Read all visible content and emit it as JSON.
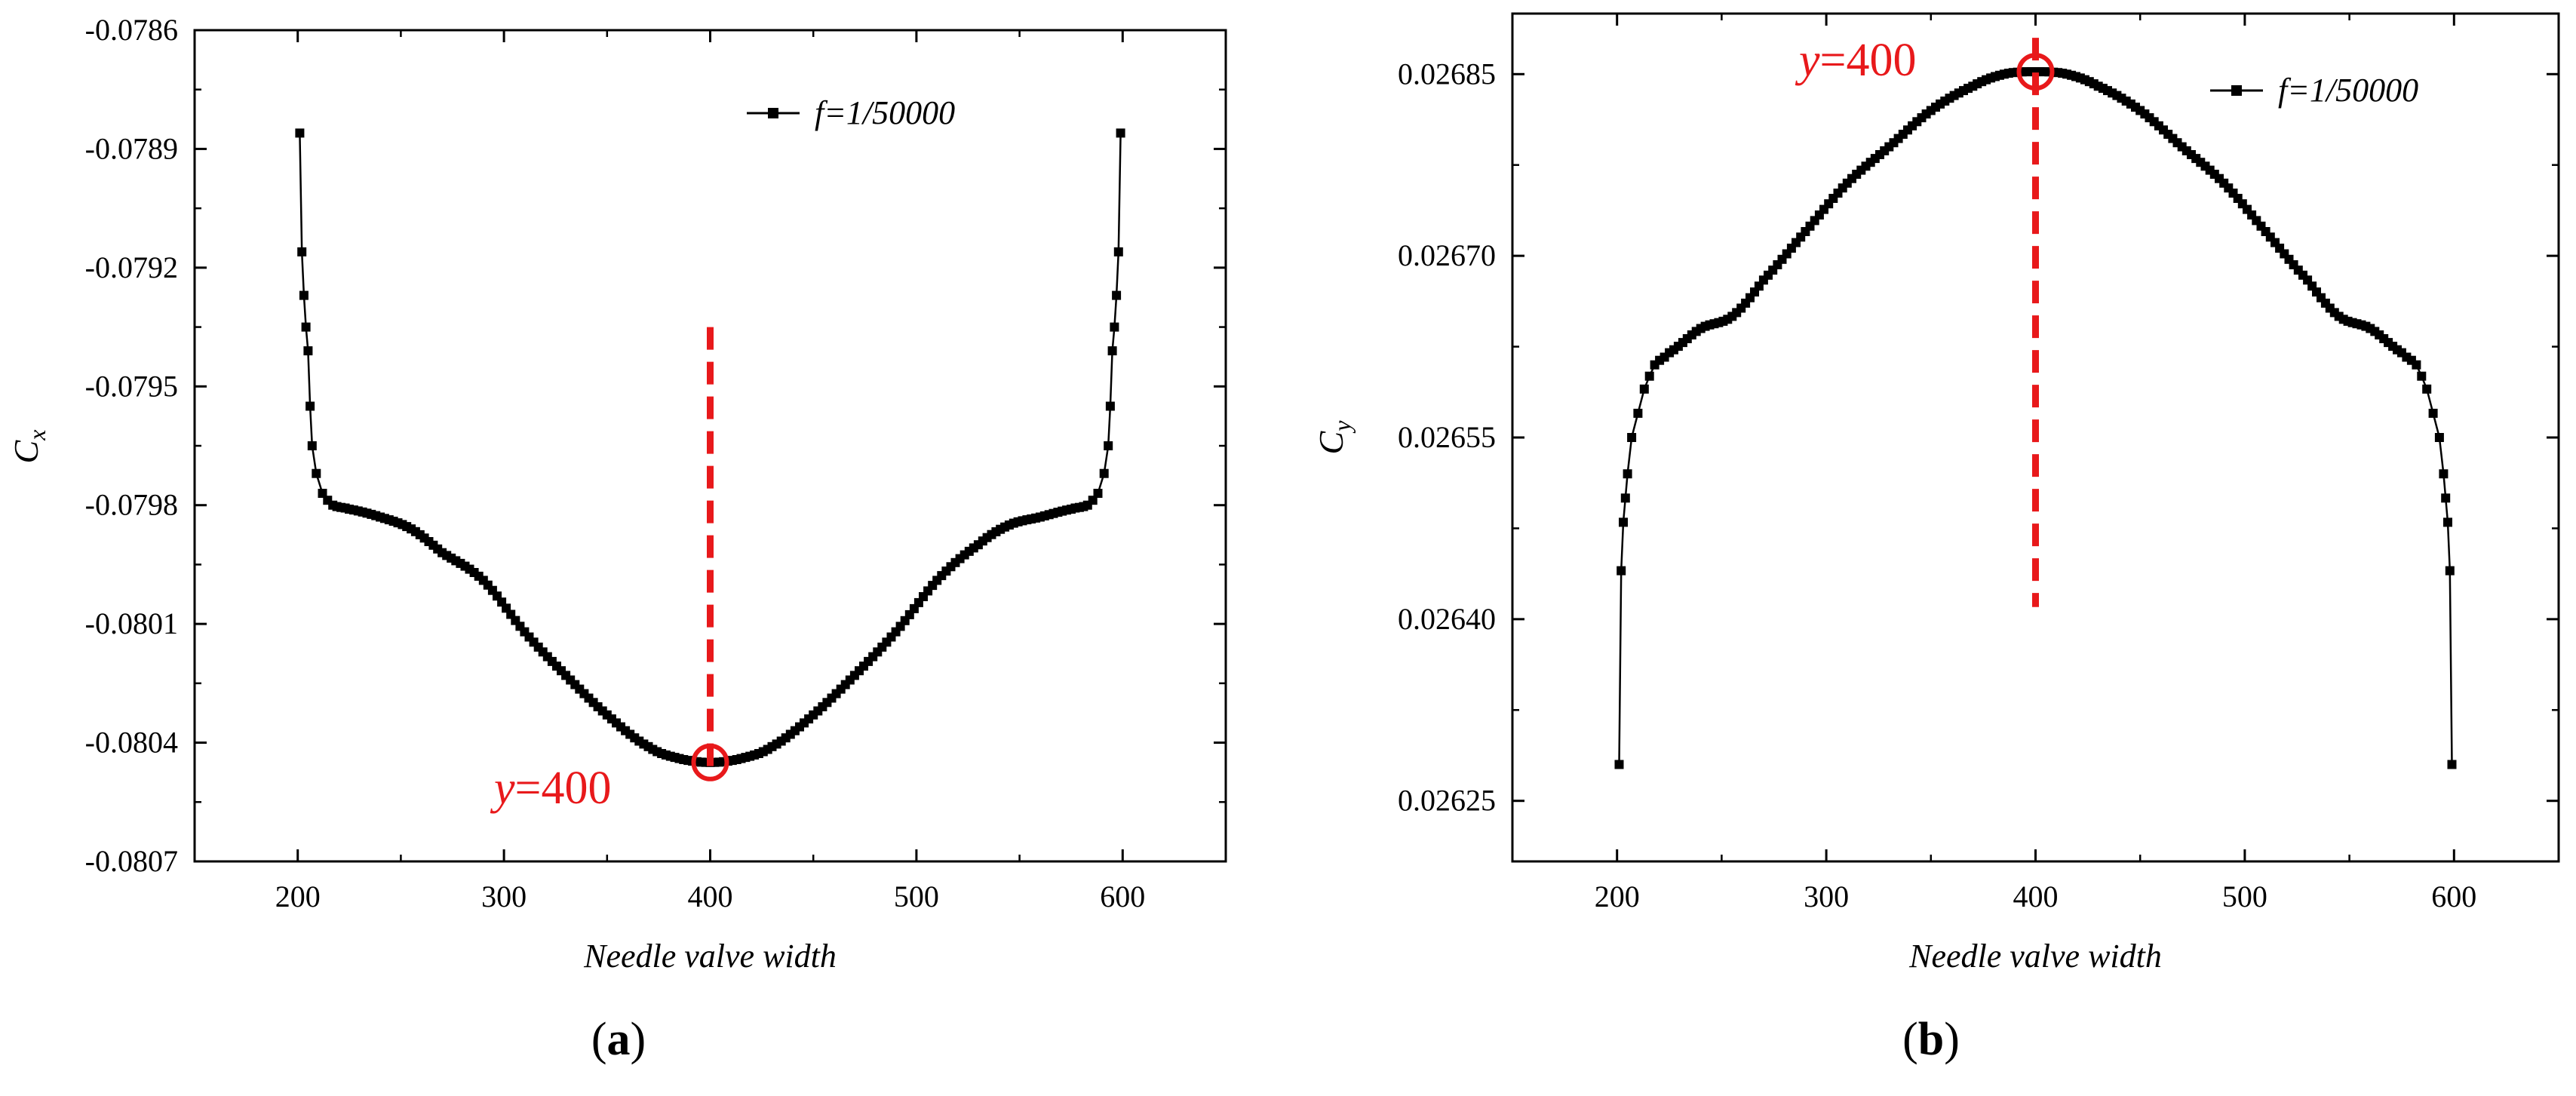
{
  "panels": [
    {
      "panel_label": "(a)",
      "chart_data": {
        "type": "scatter",
        "xlabel": "Needle valve width",
        "ylabel_main": "C",
        "ylabel_sub": "x",
        "xlim": [
          150,
          650
        ],
        "ylim": [
          -0.0807,
          -0.0786
        ],
        "xticks": [
          200,
          300,
          400,
          500,
          600
        ],
        "yticks": [
          -0.0807,
          -0.0804,
          -0.0801,
          -0.0798,
          -0.0795,
          -0.0792,
          -0.0789,
          -0.0786
        ],
        "ytick_labels": [
          "-0.0807",
          "-0.0804",
          "-0.0801",
          "-0.0798",
          "-0.0795",
          "-0.0792",
          "-0.0789",
          "-0.0786"
        ],
        "legend": "f=1/50000",
        "legend_position": "top-right",
        "series": [
          {
            "name": "f=1/50000",
            "color": "#000000",
            "marker": "square",
            "curve_keypoints": [
              [
                201,
                -0.07886
              ],
              [
                202,
                -0.07916
              ],
              [
                203,
                -0.07927
              ],
              [
                204,
                -0.07935
              ],
              [
                205,
                -0.07941
              ],
              [
                206,
                -0.07955
              ],
              [
                207,
                -0.07965
              ],
              [
                209,
                -0.07972
              ],
              [
                212,
                -0.07977
              ],
              [
                217,
                -0.0798
              ],
              [
                225,
                -0.07981
              ],
              [
                240,
                -0.07983
              ],
              [
                255,
                -0.07986
              ],
              [
                270,
                -0.07992
              ],
              [
                290,
                -0.07999
              ],
              [
                310,
                -0.08012
              ],
              [
                330,
                -0.08023
              ],
              [
                350,
                -0.08033
              ],
              [
                370,
                -0.08041
              ],
              [
                385,
                -0.08044
              ],
              [
                400,
                -0.08045
              ],
              [
                415,
                -0.08044
              ],
              [
                430,
                -0.08041
              ],
              [
                450,
                -0.08033
              ],
              [
                470,
                -0.08023
              ],
              [
                490,
                -0.08012
              ],
              [
                510,
                -0.07999
              ],
              [
                530,
                -0.0799
              ],
              [
                545,
                -0.07985
              ],
              [
                560,
                -0.07983
              ],
              [
                575,
                -0.07981
              ],
              [
                583,
                -0.0798
              ],
              [
                588,
                -0.07977
              ],
              [
                591,
                -0.07972
              ],
              [
                593,
                -0.07965
              ],
              [
                594,
                -0.07955
              ],
              [
                595,
                -0.07941
              ],
              [
                596,
                -0.07935
              ],
              [
                597,
                -0.07927
              ],
              [
                598,
                -0.07916
              ],
              [
                599,
                -0.07886
              ]
            ]
          }
        ],
        "annotation": {
          "text_italic": "y",
          "text_rest": "=400",
          "x": 400,
          "y": -0.08045,
          "line_from_y": -0.07935,
          "line_to_y": -0.08047,
          "color": "#e8191b"
        }
      }
    },
    {
      "panel_label": "(b)",
      "chart_data": {
        "type": "scatter",
        "xlabel": "Needle valve width",
        "ylabel_main": "C",
        "ylabel_sub": "y",
        "xlim": [
          150,
          650
        ],
        "ylim": [
          0.0262,
          0.0269
        ],
        "xticks": [
          200,
          300,
          400,
          500,
          600
        ],
        "yticks": [
          0.02625,
          0.0264,
          0.02655,
          0.0267,
          0.02685
        ],
        "ytick_labels": [
          "0.02625",
          "0.02640",
          "0.02655",
          "0.02670",
          "0.02685"
        ],
        "legend": "f=1/50000",
        "legend_position": "top-right",
        "series": [
          {
            "name": "f=1/50000",
            "color": "#000000",
            "marker": "square",
            "curve_keypoints": [
              [
                201,
                0.02628
              ],
              [
                202,
                0.02644
              ],
              [
                203,
                0.02648
              ],
              [
                204,
                0.0265
              ],
              [
                205,
                0.02652
              ],
              [
                207,
                0.02655
              ],
              [
                210,
                0.02657
              ],
              [
                213,
                0.02659
              ],
              [
                218,
                0.02661
              ],
              [
                225,
                0.02662
              ],
              [
                240,
                0.02664
              ],
              [
                255,
                0.02665
              ],
              [
                270,
                0.02668
              ],
              [
                290,
                0.02672
              ],
              [
                310,
                0.02676
              ],
              [
                330,
                0.02679
              ],
              [
                350,
                0.02682
              ],
              [
                370,
                0.02684
              ],
              [
                385,
                0.02685
              ],
              [
                400,
                0.026852
              ],
              [
                415,
                0.02685
              ],
              [
                430,
                0.02684
              ],
              [
                450,
                0.02682
              ],
              [
                470,
                0.02679
              ],
              [
                490,
                0.02676
              ],
              [
                510,
                0.02672
              ],
              [
                530,
                0.02668
              ],
              [
                545,
                0.02665
              ],
              [
                560,
                0.02664
              ],
              [
                575,
                0.02662
              ],
              [
                582,
                0.02661
              ],
              [
                587,
                0.02659
              ],
              [
                590,
                0.02657
              ],
              [
                593,
                0.02655
              ],
              [
                595,
                0.02652
              ],
              [
                596,
                0.0265
              ],
              [
                597,
                0.02648
              ],
              [
                598,
                0.02644
              ],
              [
                599,
                0.02628
              ]
            ]
          }
        ],
        "annotation": {
          "text_italic": "y",
          "text_rest": "=400",
          "x": 400,
          "y": 0.026852,
          "line_from_y": 0.02688,
          "line_to_y": 0.02641,
          "color": "#e8191b"
        }
      }
    }
  ]
}
